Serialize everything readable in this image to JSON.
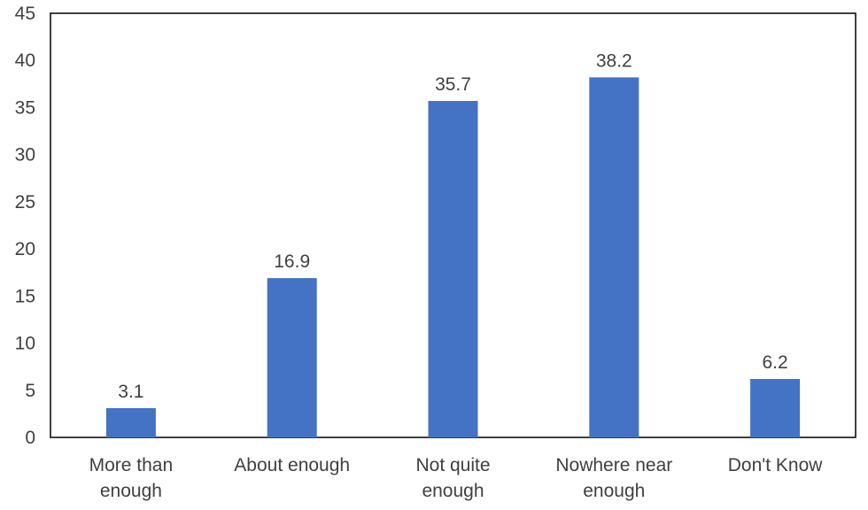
{
  "chart_data": {
    "type": "bar",
    "categories": [
      [
        "More than",
        "enough"
      ],
      [
        "About enough"
      ],
      [
        "Not quite",
        "enough"
      ],
      [
        "Nowhere near",
        "enough"
      ],
      [
        "Don't Know"
      ]
    ],
    "values": [
      3.1,
      16.9,
      35.7,
      38.2,
      6.2
    ],
    "data_labels": [
      "3.1",
      "16.9",
      "35.7",
      "38.2",
      "6.2"
    ],
    "ylim": [
      0,
      45
    ],
    "yticks": [
      0,
      5,
      10,
      15,
      20,
      25,
      30,
      35,
      40,
      45
    ],
    "bar_color": "#4472C4",
    "grid": false,
    "title": "",
    "xlabel": "",
    "ylabel": ""
  }
}
